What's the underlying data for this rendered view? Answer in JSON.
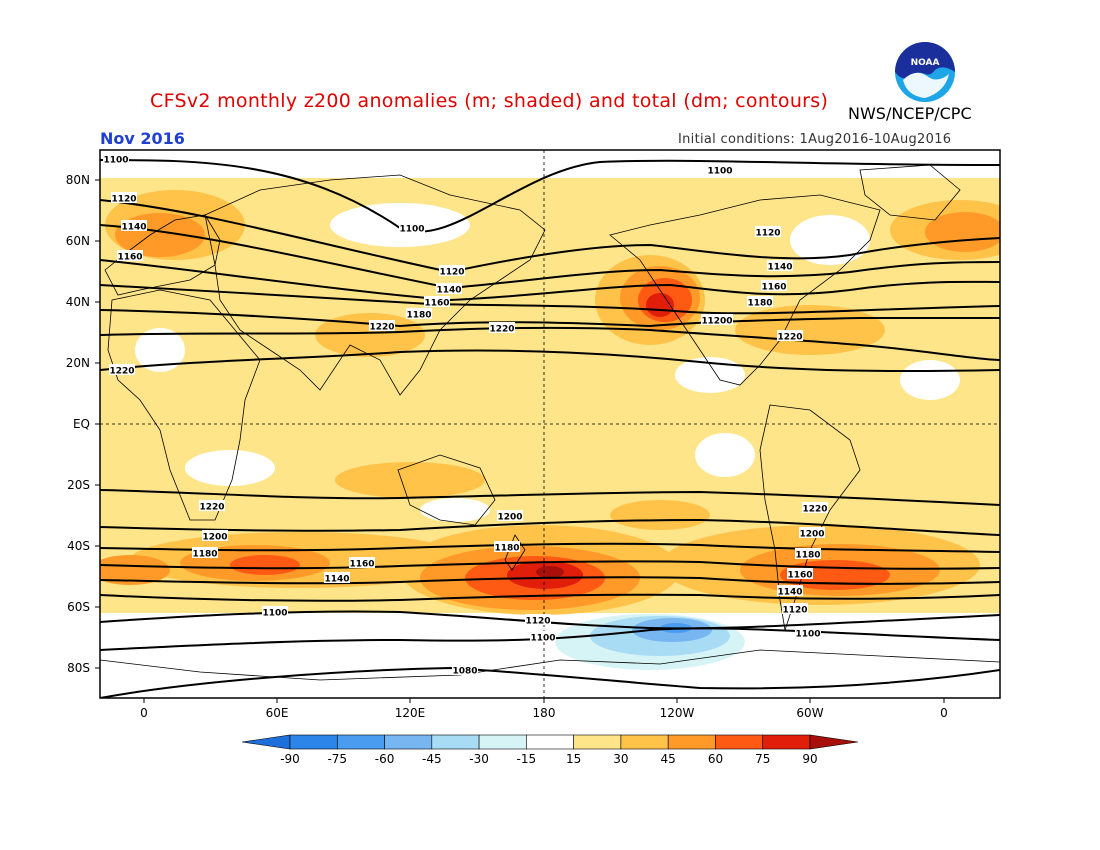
{
  "header": {
    "title": "CFSv2 monthly z200 anomalies (m; shaded) and total (dm; contours)",
    "month": "Nov 2016",
    "agency": "NWS/NCEP/CPC",
    "initial_conditions": "Initial conditions: 1Aug2016-10Aug2016",
    "logo_text": "NOAA"
  },
  "colors": {
    "title": "#e00000",
    "month": "#2040d0",
    "ocean_bg": "#ffffff",
    "land_outline": "#000000"
  },
  "axes": {
    "lat_labels": [
      "80N",
      "60N",
      "40N",
      "20N",
      "EQ",
      "20S",
      "40S",
      "60S",
      "80S"
    ],
    "lon_labels": [
      "0",
      "60E",
      "120E",
      "180",
      "120W",
      "60W",
      "0"
    ]
  },
  "colorbar": {
    "tick_labels": [
      "-90",
      "-75",
      "-60",
      "-45",
      "-30",
      "-15",
      "15",
      "30",
      "45",
      "60",
      "75",
      "90"
    ],
    "colors": [
      "#1e6fdc",
      "#2c85e8",
      "#4a9cf0",
      "#78b6f2",
      "#a8dcf5",
      "#d6f4f6",
      "#ffffff",
      "#ffe58a",
      "#ffc34a",
      "#ff9a28",
      "#ff5a14",
      "#e01e0a",
      "#a80f0a"
    ]
  },
  "contour_labels": [
    "1100",
    "1100",
    "1100",
    "1120",
    "1140",
    "1160",
    "1120",
    "1140",
    "1160",
    "1180",
    "1200",
    "1220",
    "1220",
    "1120",
    "1140",
    "1160",
    "1180",
    "1200",
    "1220",
    "1220",
    "1220",
    "1220",
    "1200",
    "1200",
    "1180",
    "1160",
    "1140",
    "1180",
    "1200",
    "1180",
    "1160",
    "1140",
    "1120",
    "1100",
    "1120",
    "1100",
    "1100",
    "1080"
  ]
}
